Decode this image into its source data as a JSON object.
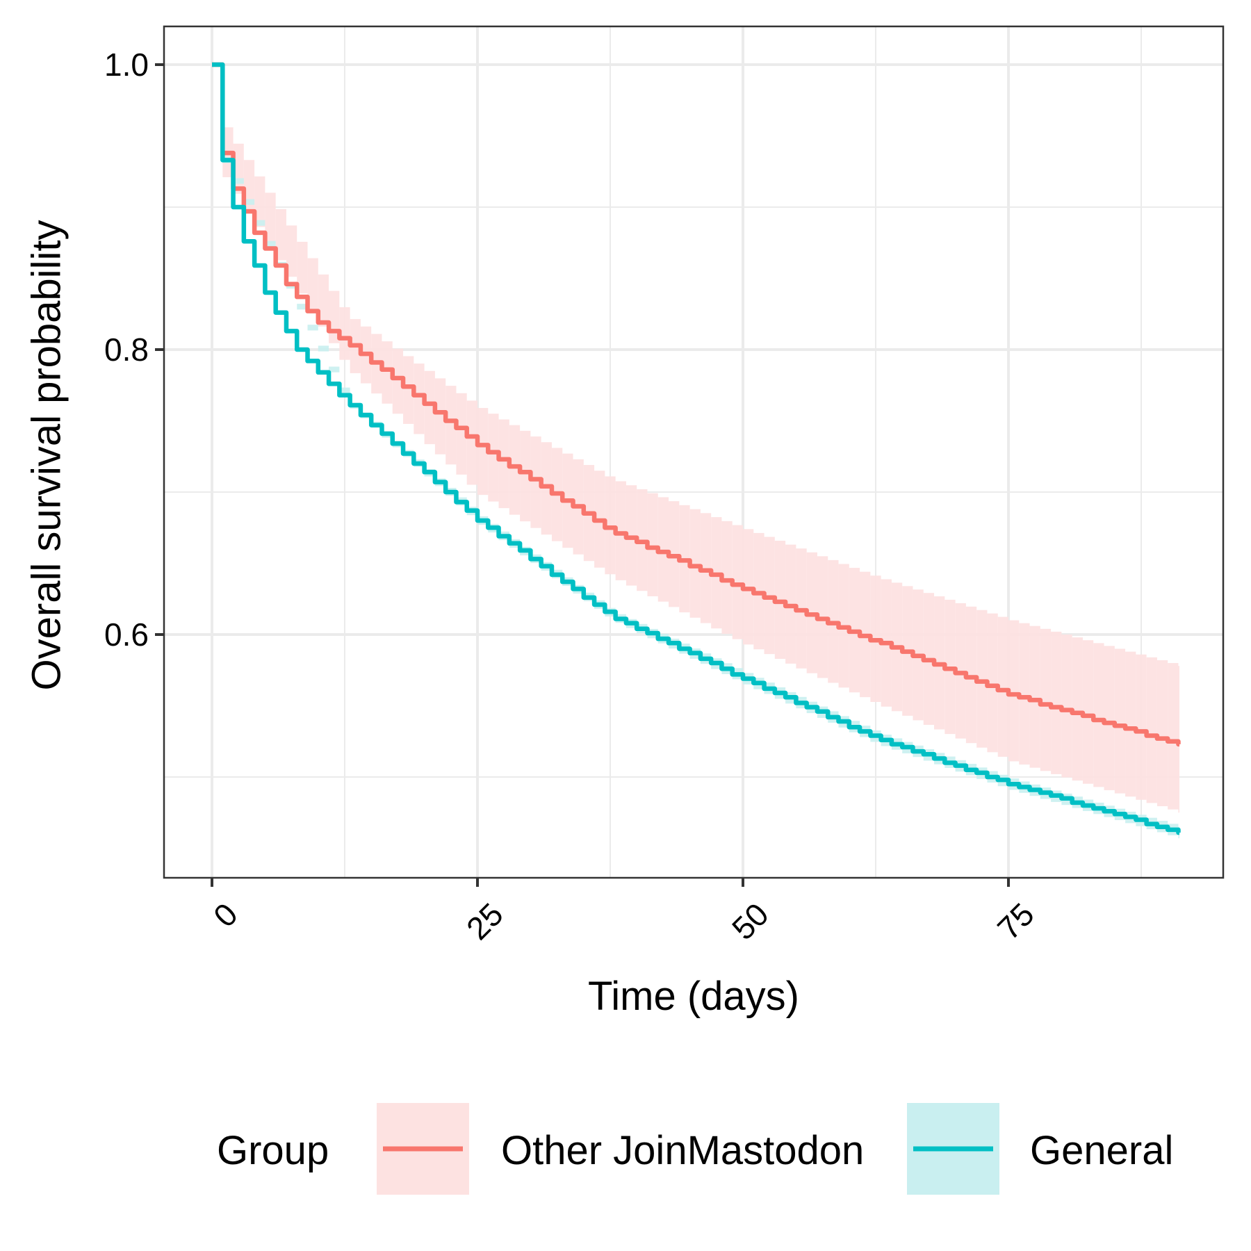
{
  "chart_data": {
    "type": "line",
    "subtype": "kaplan-meier step curves with confidence bands",
    "title": "",
    "xlabel": "Time (days)",
    "ylabel": "Overall survival probability",
    "xlim": [
      -3.6,
      96.3
    ],
    "ylim": [
      0.425,
      1.027
    ],
    "x_ticks": [
      0,
      25,
      50,
      75
    ],
    "x_tick_labels": [
      "0",
      "25",
      "50",
      "75"
    ],
    "x_tick_label_rotation_deg": 45,
    "x_minor_gridlines": [
      12.5,
      37.5,
      62.5,
      87.5
    ],
    "y_ticks": [
      0.6,
      0.8,
      1.0
    ],
    "y_tick_labels": [
      "0.6",
      "0.8",
      "1.0"
    ],
    "y_minor_gridlines": [
      0.5,
      0.7,
      0.9
    ],
    "grid": true,
    "legend": {
      "title": "Group",
      "position": "bottom",
      "entries": [
        "Other JoinMastodon",
        "General"
      ]
    },
    "days": [
      0,
      1,
      2,
      3,
      4,
      5,
      6,
      7,
      8,
      9,
      10,
      11,
      12,
      13,
      14,
      15,
      16,
      17,
      18,
      19,
      20,
      21,
      22,
      23,
      24,
      25,
      26,
      27,
      28,
      29,
      30,
      31,
      32,
      33,
      34,
      35,
      36,
      37,
      38,
      39,
      40,
      41,
      42,
      43,
      44,
      45,
      46,
      47,
      48,
      49,
      50,
      51,
      52,
      53,
      54,
      55,
      56,
      57,
      58,
      59,
      60,
      61,
      62,
      63,
      64,
      65,
      66,
      67,
      68,
      69,
      70,
      71,
      72,
      73,
      74,
      75,
      76,
      77,
      78,
      79,
      80,
      81,
      82,
      83,
      84,
      85,
      86,
      87,
      88,
      89,
      90,
      91
    ],
    "series": [
      {
        "name": "Other JoinMastodon",
        "color": "#F8766D",
        "band_color": "#FDE2E1",
        "values": [
          1.0,
          0.938,
          0.913,
          0.897,
          0.882,
          0.871,
          0.859,
          0.846,
          0.837,
          0.827,
          0.819,
          0.813,
          0.808,
          0.803,
          0.797,
          0.791,
          0.786,
          0.78,
          0.774,
          0.768,
          0.762,
          0.756,
          0.75,
          0.745,
          0.739,
          0.733,
          0.728,
          0.723,
          0.718,
          0.714,
          0.709,
          0.704,
          0.699,
          0.694,
          0.69,
          0.685,
          0.68,
          0.675,
          0.671,
          0.668,
          0.665,
          0.661,
          0.658,
          0.655,
          0.652,
          0.648,
          0.645,
          0.642,
          0.638,
          0.635,
          0.632,
          0.629,
          0.626,
          0.623,
          0.62,
          0.617,
          0.614,
          0.611,
          0.608,
          0.605,
          0.602,
          0.599,
          0.596,
          0.594,
          0.591,
          0.588,
          0.585,
          0.582,
          0.579,
          0.576,
          0.573,
          0.57,
          0.567,
          0.564,
          0.561,
          0.558,
          0.556,
          0.554,
          0.551,
          0.549,
          0.547,
          0.545,
          0.543,
          0.54,
          0.538,
          0.536,
          0.534,
          0.532,
          0.529,
          0.527,
          0.525,
          0.523
        ],
        "ci_knots": {
          "days": [
            0,
            1,
            12.5,
            25,
            37.5,
            50,
            62.5,
            75,
            91
          ],
          "upper": [
            1.0,
            0.956,
            0.824,
            0.759,
            0.709,
            0.674,
            0.64,
            0.61,
            0.578
          ],
          "lower": [
            1.0,
            0.921,
            0.787,
            0.698,
            0.64,
            0.593,
            0.551,
            0.511,
            0.475
          ]
        }
      },
      {
        "name": "General",
        "color": "#00BFC4",
        "band_color": "#C9EFF0",
        "values": [
          1.0,
          0.933,
          0.9,
          0.876,
          0.859,
          0.84,
          0.826,
          0.813,
          0.8,
          0.792,
          0.784,
          0.776,
          0.768,
          0.761,
          0.754,
          0.747,
          0.741,
          0.734,
          0.727,
          0.72,
          0.714,
          0.707,
          0.7,
          0.693,
          0.687,
          0.68,
          0.675,
          0.669,
          0.664,
          0.659,
          0.653,
          0.648,
          0.642,
          0.637,
          0.632,
          0.626,
          0.621,
          0.616,
          0.611,
          0.608,
          0.604,
          0.601,
          0.597,
          0.594,
          0.59,
          0.587,
          0.583,
          0.58,
          0.576,
          0.572,
          0.569,
          0.566,
          0.562,
          0.559,
          0.556,
          0.552,
          0.549,
          0.546,
          0.542,
          0.539,
          0.535,
          0.532,
          0.529,
          0.526,
          0.523,
          0.521,
          0.518,
          0.516,
          0.513,
          0.51,
          0.508,
          0.505,
          0.503,
          0.5,
          0.498,
          0.495,
          0.493,
          0.491,
          0.489,
          0.487,
          0.485,
          0.482,
          0.48,
          0.478,
          0.476,
          0.474,
          0.472,
          0.47,
          0.467,
          0.465,
          0.463,
          0.461
        ],
        "ci_knots": {
          "days": [
            0,
            1,
            12.5,
            25,
            37.5,
            50,
            62.5,
            75,
            91
          ],
          "upper": [
            1.0,
            0.935,
            0.766,
            0.683,
            0.616,
            0.573,
            0.531,
            0.499,
            0.465
          ],
          "lower": [
            1.0,
            0.931,
            0.762,
            0.677,
            0.61,
            0.565,
            0.523,
            0.491,
            0.457
          ]
        }
      }
    ]
  },
  "colors": {
    "panel_border": "#333333",
    "grid": "#EBEBEB",
    "tick": "#333333"
  }
}
